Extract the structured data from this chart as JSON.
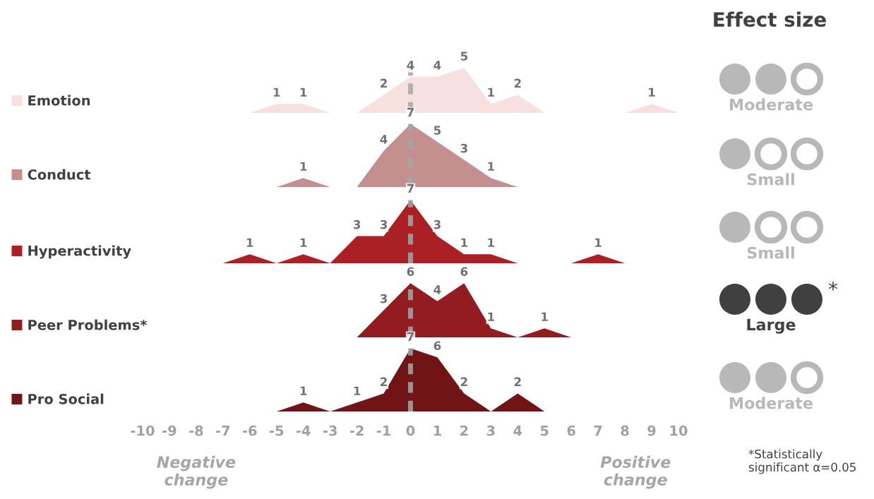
{
  "chart_data": [
    {
      "type": "area",
      "xlim": [
        -10,
        10
      ],
      "tick_labels": false,
      "legend": "left",
      "grid": false,
      "ref_lines": [
        {
          "axis": "x",
          "value": 0,
          "color": "#a6a6a6",
          "line_style": "dashed"
        }
      ],
      "series": [
        {
          "name": "Emotion",
          "color": "#f8e0e0",
          "x": [
            -6,
            -5,
            -4,
            -3,
            -2,
            -1,
            0,
            1,
            2,
            3,
            4,
            5,
            6,
            7,
            8,
            9,
            10
          ],
          "values": [
            0,
            1,
            1,
            0,
            0,
            2,
            4,
            4,
            5,
            1,
            2,
            0,
            0,
            0,
            0,
            1,
            0
          ],
          "value_labels": [
            null,
            "1",
            "1",
            null,
            null,
            "2",
            "4",
            "4",
            "5",
            "1",
            "2",
            null,
            null,
            null,
            null,
            "1",
            null
          ]
        }
      ]
    },
    {
      "type": "area",
      "xlim": [
        -10,
        10
      ],
      "tick_labels": false,
      "legend": "left",
      "grid": false,
      "ref_lines": [
        {
          "axis": "x",
          "value": 0,
          "color": "#a6a6a6",
          "line_style": "dashed"
        }
      ],
      "series": [
        {
          "name": "Conduct",
          "color": "#c48f8f",
          "x": [
            -5,
            -4,
            -3,
            -2,
            -1,
            0,
            1,
            2,
            3,
            4
          ],
          "values": [
            0,
            1,
            0,
            0,
            4,
            7,
            5,
            3,
            1,
            0
          ],
          "value_labels": [
            null,
            "1",
            null,
            null,
            "4",
            "7",
            "5",
            "3",
            "1",
            null
          ]
        }
      ]
    },
    {
      "type": "area",
      "xlim": [
        -10,
        10
      ],
      "tick_labels": false,
      "legend": "left",
      "grid": false,
      "ref_lines": [
        {
          "axis": "x",
          "value": 0,
          "color": "#a6a6a6",
          "line_style": "dashed"
        }
      ],
      "series": [
        {
          "name": "Hyperactivity",
          "color": "#ab2024",
          "x": [
            -7,
            -6,
            -5,
            -4,
            -3,
            -2,
            -1,
            0,
            1,
            2,
            3,
            4,
            5,
            6,
            7,
            8
          ],
          "values": [
            0,
            1,
            0,
            1,
            0,
            3,
            3,
            7,
            3,
            1,
            1,
            0,
            0,
            0,
            1,
            0
          ],
          "value_labels": [
            null,
            "1",
            null,
            "1",
            null,
            "3",
            "3",
            "7",
            "3",
            "1",
            "1",
            null,
            null,
            null,
            "1",
            null
          ]
        }
      ]
    },
    {
      "type": "area",
      "xlim": [
        -10,
        10
      ],
      "tick_labels": false,
      "legend": "left",
      "grid": false,
      "ref_lines": [
        {
          "axis": "x",
          "value": 0,
          "color": "#a6a6a6",
          "line_style": "dashed"
        }
      ],
      "series": [
        {
          "name": "Peer Problems*",
          "color": "#921c1f",
          "x": [
            -2,
            -1,
            0,
            1,
            2,
            3,
            4,
            5,
            6
          ],
          "values": [
            0,
            3,
            6,
            4,
            6,
            1,
            0,
            1,
            0
          ],
          "value_labels": [
            null,
            "3",
            "6",
            "4",
            "6",
            "1",
            null,
            "1",
            null
          ]
        }
      ]
    },
    {
      "type": "area",
      "xlim": [
        -10,
        10
      ],
      "tick_labels": "x",
      "legend": "left",
      "grid": false,
      "xticks": [
        -10,
        -9,
        -8,
        -7,
        -6,
        -5,
        -4,
        -3,
        -2,
        -1,
        0,
        1,
        2,
        3,
        4,
        5,
        6,
        7,
        8,
        9,
        10
      ],
      "ref_lines": [
        {
          "axis": "x",
          "value": 0,
          "color": "#a6a6a6",
          "line_style": "dashed"
        }
      ],
      "annotations": [
        "Negative change",
        "Positive change"
      ],
      "series": [
        {
          "name": "Pro Social",
          "color": "#711416",
          "x": [
            -5,
            -4,
            -3,
            -2,
            -1,
            0,
            1,
            2,
            3,
            4,
            5
          ],
          "values": [
            0,
            1,
            0,
            1,
            2,
            7,
            6,
            2,
            0,
            2,
            0
          ],
          "value_labels": [
            null,
            "1",
            null,
            "1",
            "2",
            "7",
            "6",
            "2",
            null,
            "2",
            null
          ]
        }
      ]
    },
    {
      "type": "other",
      "title": "Effect size",
      "annotations": [
        "Moderate",
        "Small",
        "Small",
        "Large",
        "Moderate",
        "*",
        "*Statistically significant α=0.05"
      ]
    }
  ]
}
